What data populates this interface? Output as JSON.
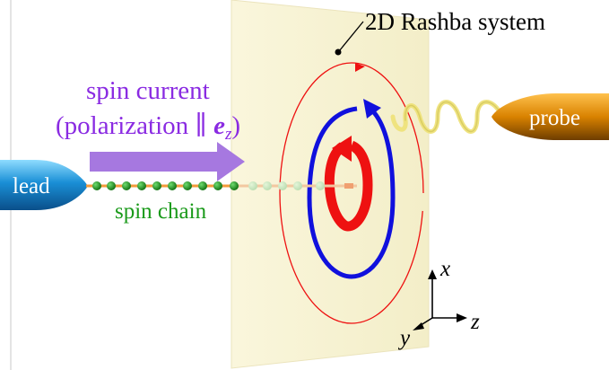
{
  "labels": {
    "system": "2D Rashba system",
    "current_line1": "spin current",
    "current_line2_pre": "(polarization ∥ ",
    "current_vec": "e",
    "current_sub": "z",
    "current_line2_post": ")",
    "lead": "lead",
    "probe": "probe",
    "chain": "spin chain",
    "axis_x": "x",
    "axis_y": "y",
    "axis_z": "z"
  },
  "colors": {
    "plane": "#f8f4d8",
    "plane_edge": "#ece6c0",
    "current_label": "#8a2be2",
    "current_arrow": "#a678e0",
    "chain_label": "#1a9a1a",
    "spin_bead": "#1f8c1f",
    "lead": "#1a8fd6",
    "probe": "#d98200",
    "inner_loop": "#ee1111",
    "middle_loop": "#1010dd",
    "outer_loop": "#ee1111",
    "helix": "#e8e070"
  },
  "icons": {
    "lead": "cone-tip",
    "probe": "cone-tip",
    "axes": "xyz-axes-glyph"
  }
}
